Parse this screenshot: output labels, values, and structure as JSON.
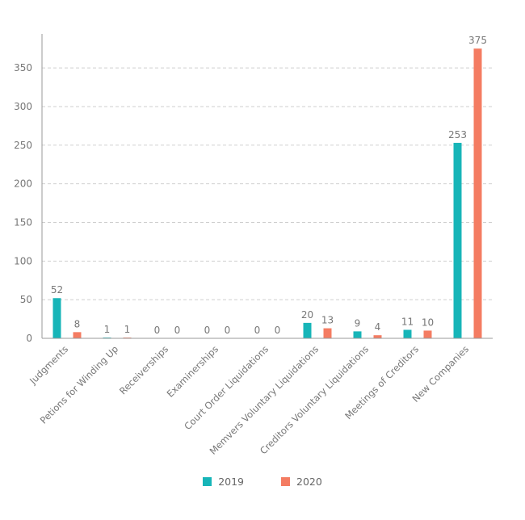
{
  "chart_data": {
    "type": "bar",
    "categories": [
      "Judgments",
      "Petions for Winding Up",
      "Receiverships",
      "Examinerships",
      "Court Order Liquidations",
      "Memvers Voluntary Liquidations",
      "Creditors Voluntary Liquidations",
      "Meetings of Creditors",
      "New Companies"
    ],
    "series": [
      {
        "name": "2019",
        "color": "#17b5b8",
        "values": [
          52,
          1,
          0,
          0,
          0,
          20,
          9,
          11,
          253
        ]
      },
      {
        "name": "2020",
        "color": "#f47c62",
        "values": [
          8,
          1,
          0,
          0,
          0,
          13,
          4,
          10,
          375
        ]
      }
    ],
    "yticks": [
      0,
      50,
      100,
      150,
      200,
      250,
      300,
      350
    ],
    "ylim": [
      0,
      394
    ],
    "grid": true,
    "legend_position": "bottom"
  }
}
